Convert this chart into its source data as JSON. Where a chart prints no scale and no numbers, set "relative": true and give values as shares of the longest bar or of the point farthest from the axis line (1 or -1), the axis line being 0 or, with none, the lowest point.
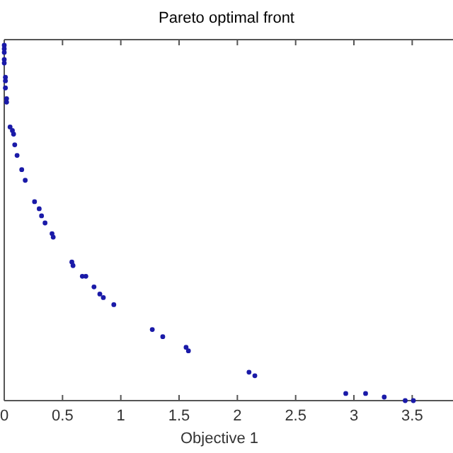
{
  "chart_data": {
    "type": "scatter",
    "title": "Pareto optimal front",
    "xlabel": "Objective 1",
    "relative": true,
    "marker": "circle",
    "grid": false,
    "xlim": [
      0,
      3.85
    ],
    "xticks": [
      0,
      0.5,
      1,
      1.5,
      2,
      2.5,
      3,
      3.5
    ],
    "series": [
      {
        "color": "#1a1aa8",
        "x": [
          0,
          0,
          0,
          0,
          0,
          0.01,
          0.01,
          0.01,
          0.02,
          0.02,
          0.05,
          0.07,
          0.08,
          0.09,
          0.11,
          0.15,
          0.18,
          0.26,
          0.3,
          0.32,
          0.35,
          0.41,
          0.42,
          0.58,
          0.59,
          0.67,
          0.7,
          0.77,
          0.82,
          0.85,
          0.94,
          1.27,
          1.36,
          1.56,
          1.58,
          2.1,
          2.15,
          2.93,
          3.1,
          3.26,
          3.44,
          3.51
        ],
        "values": [
          1,
          0.99,
          0.98,
          0.96,
          0.95,
          0.91,
          0.9,
          0.88,
          0.85,
          0.84,
          0.77,
          0.76,
          0.75,
          0.72,
          0.69,
          0.65,
          0.62,
          0.56,
          0.54,
          0.52,
          0.5,
          0.47,
          0.46,
          0.39,
          0.38,
          0.35,
          0.35,
          0.32,
          0.3,
          0.29,
          0.27,
          0.2,
          0.18,
          0.15,
          0.14,
          0.08,
          0.07,
          0.02,
          0.02,
          0.01,
          0,
          0
        ]
      }
    ]
  }
}
